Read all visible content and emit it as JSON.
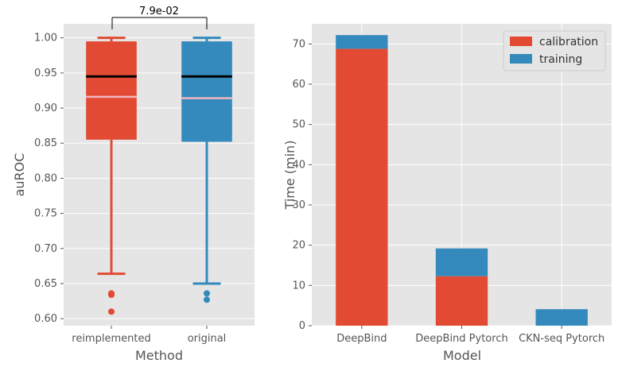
{
  "chart_data": [
    {
      "type": "box",
      "xlabel": "Method",
      "ylabel": "auROC",
      "ylim": [
        0.59,
        1.02
      ],
      "yticks": [
        "0.60",
        "0.65",
        "0.70",
        "0.75",
        "0.80",
        "0.85",
        "0.90",
        "0.95",
        "1.00"
      ],
      "grid": true,
      "categories": [
        "reimplemented",
        "original"
      ],
      "boxes": [
        {
          "name": "reimplemented",
          "color": "#E24A33",
          "q1": 0.855,
          "q3": 0.995,
          "median": 0.945,
          "mean": 0.916,
          "whisker_low": 0.664,
          "whisker_high": 1.0,
          "outliers": [
            0.636,
            0.634,
            0.61
          ]
        },
        {
          "name": "original",
          "color": "#348ABD",
          "q1": 0.852,
          "q3": 0.995,
          "median": 0.945,
          "mean": 0.914,
          "whisker_low": 0.65,
          "whisker_high": 1.0,
          "outliers": [
            0.636,
            0.627
          ]
        }
      ],
      "annotation": "7.9e-02"
    },
    {
      "type": "bar",
      "stacked": true,
      "xlabel": "Model",
      "ylabel": "Time (min)",
      "ylim": [
        0,
        75
      ],
      "yticks": [
        "0",
        "10",
        "20",
        "30",
        "40",
        "50",
        "60",
        "70"
      ],
      "grid": true,
      "categories": [
        "DeepBind",
        "DeepBind Pytorch",
        "CKN-seq Pytorch"
      ],
      "series": [
        {
          "name": "calibration",
          "color": "#E24A33",
          "values": [
            68.8,
            12.3,
            0
          ]
        },
        {
          "name": "training",
          "color": "#348ABD",
          "values": [
            3.4,
            6.9,
            4.1
          ]
        }
      ],
      "legend": "top-right"
    }
  ]
}
